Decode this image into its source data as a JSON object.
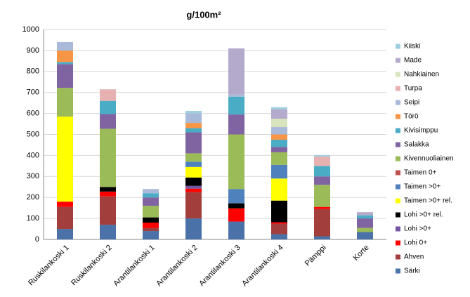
{
  "chart_data": {
    "type": "stacked-bar",
    "title": "g/100m²",
    "categories": [
      "Ruskilankoski 1",
      "Ruskilankoski 2",
      "Arantilankoski 1",
      "Arantilankoski 2",
      "Arantilankoski 3",
      "Arantilankoski 4",
      "Pämppi",
      "Korte"
    ],
    "ylim": [
      0,
      1000
    ],
    "yticks": [
      0,
      100,
      200,
      300,
      400,
      500,
      600,
      700,
      800,
      900,
      1000
    ],
    "grid": true,
    "legend": "right",
    "series": [
      {
        "name": "Särki",
        "color": "#4a72a8",
        "values": [
          50,
          70,
          40,
          100,
          85,
          25,
          15,
          35
        ]
      },
      {
        "name": "Ahven",
        "color": "#a23f3c",
        "values": [
          105,
          135,
          15,
          125,
          0,
          50,
          130,
          0
        ]
      },
      {
        "name": "Lohi 0+",
        "color": "#ff0000",
        "values": [
          25,
          23,
          25,
          17,
          63,
          7,
          10,
          0
        ]
      },
      {
        "name": "Lohi >0+",
        "color": "#7554a3",
        "values": [
          0,
          0,
          0,
          13,
          0,
          0,
          0,
          0
        ]
      },
      {
        "name": "Lohi >0+ rel.",
        "color": "#000000",
        "values": [
          0,
          22,
          25,
          40,
          24,
          103,
          0,
          0
        ]
      },
      {
        "name": "Taimen >0+ rel.",
        "color": "#ffff00",
        "values": [
          405,
          0,
          0,
          50,
          0,
          105,
          0,
          0
        ]
      },
      {
        "name": "Taimen >0+",
        "color": "#4f81bd",
        "values": [
          0,
          0,
          0,
          25,
          68,
          65,
          0,
          0
        ]
      },
      {
        "name": "Taimen 0+",
        "color": "#c0504d",
        "values": [
          0,
          0,
          0,
          0,
          0,
          0,
          0,
          0
        ]
      },
      {
        "name": "Kivennuoliainen",
        "color": "#9bbb59",
        "values": [
          137,
          277,
          55,
          40,
          260,
          60,
          105,
          20
        ]
      },
      {
        "name": "Salakka",
        "color": "#8064a2",
        "values": [
          113,
          70,
          40,
          100,
          95,
          25,
          40,
          45
        ]
      },
      {
        "name": "Kivisimppu",
        "color": "#4bacc6",
        "values": [
          10,
          63,
          20,
          20,
          85,
          35,
          50,
          15
        ]
      },
      {
        "name": "Törö",
        "color": "#f79646",
        "values": [
          55,
          0,
          0,
          25,
          0,
          25,
          0,
          0
        ]
      },
      {
        "name": "Seipi",
        "color": "#a9b9d9",
        "values": [
          40,
          0,
          20,
          45,
          10,
          35,
          0,
          0
        ]
      },
      {
        "name": "Turpa",
        "color": "#e6b1b0",
        "values": [
          0,
          55,
          0,
          0,
          0,
          0,
          45,
          0
        ]
      },
      {
        "name": "Nahkiainen",
        "color": "#d7e4bd",
        "values": [
          0,
          0,
          0,
          0,
          0,
          40,
          0,
          0
        ]
      },
      {
        "name": "Made",
        "color": "#b4aacb",
        "values": [
          0,
          0,
          0,
          0,
          220,
          45,
          0,
          15
        ]
      },
      {
        "name": "Kiiski",
        "color": "#9fcfdf",
        "values": [
          0,
          0,
          0,
          12,
          0,
          10,
          7,
          0
        ]
      }
    ]
  }
}
